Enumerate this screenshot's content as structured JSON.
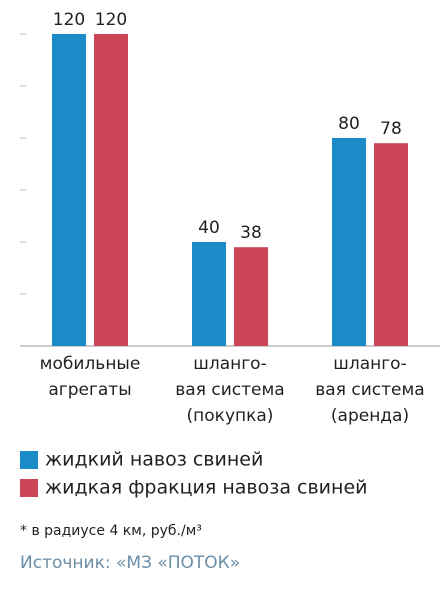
{
  "chart_data": {
    "type": "bar",
    "categories": [
      [
        "мобильные",
        "агрегаты"
      ],
      [
        "шланго-",
        "вая система",
        "(покупка)"
      ],
      [
        "шланго-",
        "вая система",
        "(аренда)"
      ]
    ],
    "series": [
      {
        "name": "жидкий навоз свиней",
        "color": "#1a8bc7",
        "values": [
          120,
          40,
          80
        ]
      },
      {
        "name": "жидкая фракция навоза свиней",
        "color": "#cc4557",
        "values": [
          120,
          38,
          78
        ]
      }
    ],
    "ylim": [
      0,
      120
    ],
    "yticks": [
      0,
      20,
      40,
      60,
      80,
      100,
      120
    ],
    "footnote": "* в радиусе 4 км, руб./м³",
    "source": "Источник: «МЗ «ПОТОК»"
  }
}
